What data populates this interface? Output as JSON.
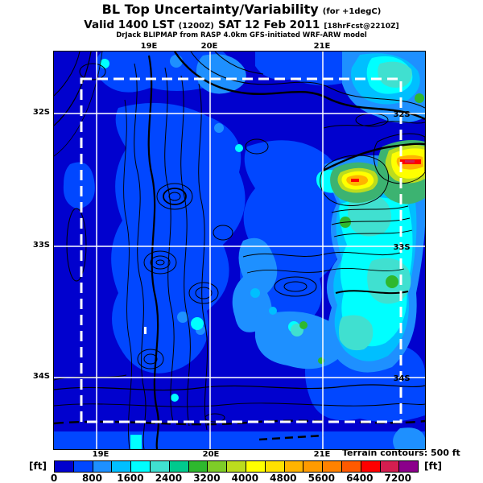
{
  "title": {
    "line1": "BL Top Uncertainty/Variability",
    "line1_qualifier": "(for +1degC)",
    "line2_prefix": "Valid 1400 LST",
    "line2_run": "(1200Z)",
    "line2_date": "SAT 12 Feb 2011",
    "line2_fcst": "[18hrFcst@2210Z]",
    "line3": "DrJack BLIPMAP from RASP 4.0km GFS-initiated WRF-ARW model"
  },
  "map": {
    "top_labels": [
      "19E",
      "20E",
      "21E"
    ],
    "bottom_labels": [
      "19E",
      "20E",
      "21E"
    ],
    "left_labels": [
      "32S",
      "33S",
      "34S"
    ],
    "right_labels": [
      "32S",
      "33S",
      "34S"
    ],
    "terrain_note": "Terrain contours: 500 ft"
  },
  "colorbar": {
    "unit_left": "[ft]",
    "unit_right": "[ft]",
    "ticks": [
      "0",
      "800",
      "1600",
      "2400",
      "3200",
      "4000",
      "4800",
      "5600",
      "6400",
      "7200"
    ],
    "colors": [
      "#0101CE",
      "#0147FF",
      "#1E90FF",
      "#00BFFF",
      "#00FFFF",
      "#40E0D0",
      "#00C98D",
      "#2EB82E",
      "#7ECC28",
      "#BCDC1E",
      "#FFFF00",
      "#FFE100",
      "#FFB400",
      "#FF9B00",
      "#FF8200",
      "#FF5A00",
      "#FF0000",
      "#D41E50",
      "#8B008B"
    ]
  },
  "chart_data": {
    "type": "heatmap",
    "title": "BL Top Uncertainty/Variability (for +1degC)",
    "subtitle": "Valid 1400 LST (1200Z) SAT 12 Feb 2011 [18hrFcst@2210Z]",
    "model_line": "DrJack BLIPMAP from RASP 4.0km GFS-initiated WRF-ARW model",
    "x_ticks": [
      "19E",
      "20E",
      "21E"
    ],
    "y_ticks": [
      "32S",
      "33S",
      "34S"
    ],
    "colorbar": {
      "unit": "ft",
      "range": [
        0,
        7600
      ],
      "segment_size": 400,
      "tick_values": [
        0,
        800,
        1600,
        2400,
        3200,
        4000,
        4800,
        5600,
        6400,
        7200
      ]
    },
    "terrain_contour_interval": "500 ft",
    "overlays": [
      "white lat/lon graticule",
      "white dashed model-domain rectangle",
      "black terrain contour lines"
    ],
    "field_description": "Predominantly 0-800 ft (blue) across the domain; 800-2400 ft (cyan/turquoise) areas in the upper-right corner, right-center band and lower-center; localized maxima of 4800-7200 ft (yellow/orange/red streaks) near 32.3S between 20.8E and 21.3E"
  }
}
